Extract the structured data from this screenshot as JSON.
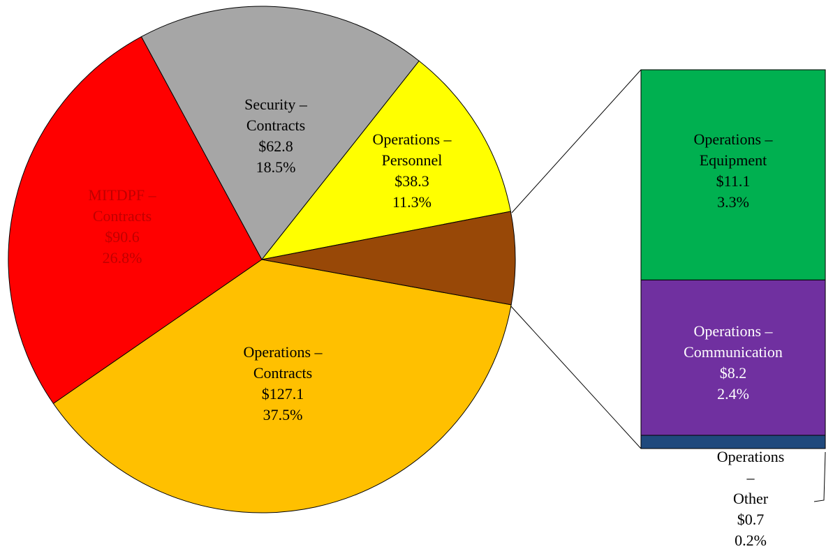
{
  "chart_data": {
    "type": "bar-of-pie",
    "slices": {
      "names": [
        "Operations –\nContracts",
        "MITDPF –\nContracts",
        "Security –\nContracts",
        "Operations –\nPersonnel",
        null
      ],
      "values": [
        127.1,
        90.6,
        62.8,
        38.3,
        20.0
      ],
      "value_labels": [
        "$127.1",
        "$90.6",
        "$62.8",
        "$38.3",
        null
      ],
      "percent_labels": [
        "37.5%",
        "26.8%",
        "18.5%",
        "11.3%",
        null
      ],
      "colors": [
        "#ffc000",
        "#ff0000",
        "#a6a6a6",
        "#ffff00",
        "#984807"
      ],
      "label_colors": [
        "#000000",
        "#c00000",
        "#000000",
        "#000000",
        null
      ]
    },
    "bar": {
      "names": [
        "Operations –\nEquipment",
        "Operations –\nCommunication",
        "Operations –\nOther"
      ],
      "values": [
        11.1,
        8.2,
        0.7
      ],
      "value_labels": [
        "$11.1",
        "$8.2",
        "$0.7"
      ],
      "percent_labels": [
        "3.3%",
        "2.4%",
        "0.2%"
      ],
      "colors": [
        "#00b050",
        "#7030a0",
        "#1f497d"
      ],
      "label_colors": [
        "#000000",
        "#ffffff",
        "#000000"
      ]
    }
  }
}
